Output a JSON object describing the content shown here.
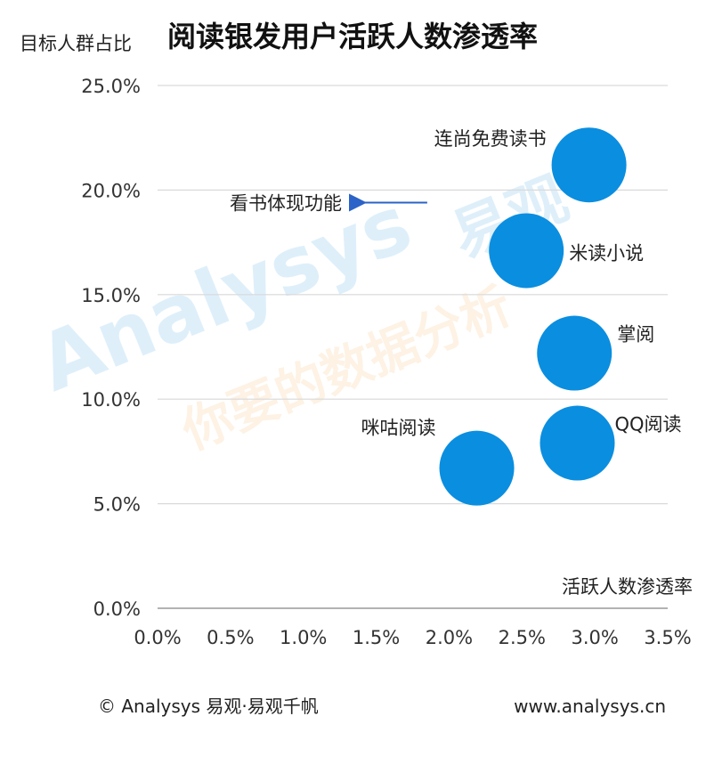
{
  "chart_data": {
    "type": "scatter",
    "title": "阅读银发用户活跃人数渗透率",
    "ylabel": "目标人群占比",
    "xlabel": "活跃人数渗透率",
    "x_ticks": [
      "0.0%",
      "0.5%",
      "1.0%",
      "1.5%",
      "2.0%",
      "2.5%",
      "3.0%",
      "3.5%"
    ],
    "y_ticks": [
      "0.0%",
      "5.0%",
      "10.0%",
      "15.0%",
      "20.0%",
      "25.0%"
    ],
    "xlim": [
      0,
      3.5
    ],
    "ylim": [
      0,
      25
    ],
    "grid": true,
    "bubble_color": "#0a8ee0",
    "points": [
      {
        "label": "连尚免费读书",
        "x": 2.96,
        "y": 21.2
      },
      {
        "label": "米读小说",
        "x": 2.53,
        "y": 17.1
      },
      {
        "label": "掌阅",
        "x": 2.86,
        "y": 12.2
      },
      {
        "label": "QQ阅读",
        "x": 2.88,
        "y": 7.9
      },
      {
        "label": "咪咕阅读",
        "x": 2.19,
        "y": 6.7
      }
    ],
    "annotation": {
      "text": "看书体现功能",
      "arrow_from_x": 1.85,
      "arrow_to_x": 1.35,
      "y": 19.4
    }
  },
  "footer": {
    "left": "© Analysys 易观·易观千帆",
    "right": "www.analysys.cn"
  },
  "watermark": {
    "brand": "Analysys",
    "brand_cn": "易观",
    "slogan": "你要的数据分析"
  }
}
